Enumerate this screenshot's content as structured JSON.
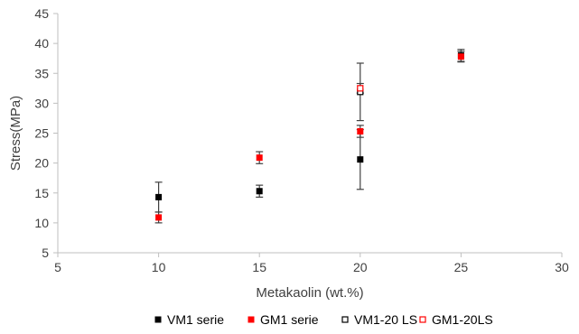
{
  "chart_data": {
    "type": "scatter",
    "xlabel": "Metakaolin (wt.%)",
    "ylabel": "Stress(MPa)",
    "xlim": [
      5,
      30
    ],
    "ylim": [
      5,
      45
    ],
    "xticks": [
      5,
      10,
      15,
      20,
      25,
      30
    ],
    "yticks": [
      5,
      10,
      15,
      20,
      25,
      30,
      35,
      40,
      45
    ],
    "grid": false,
    "legend_position": "bottom",
    "series": [
      {
        "name": "VM1 serie",
        "marker": "filled-square",
        "color": "#000000",
        "points": [
          {
            "x": 10,
            "y": 14.3,
            "err": 2.5
          },
          {
            "x": 15,
            "y": 15.3,
            "err": 1.0
          },
          {
            "x": 20,
            "y": 20.6,
            "err": 5.0
          },
          {
            "x": 25,
            "y": 38.0,
            "err": 1.0
          }
        ]
      },
      {
        "name": "GM1 serie",
        "marker": "filled-square",
        "color": "#ff0000",
        "points": [
          {
            "x": 10,
            "y": 10.9,
            "err": 0.9
          },
          {
            "x": 15,
            "y": 20.9,
            "err": 1.0
          },
          {
            "x": 20,
            "y": 25.3,
            "err": 1.0
          },
          {
            "x": 25,
            "y": 37.8,
            "err": 0.9
          }
        ]
      },
      {
        "name": "VM1-20 LS",
        "marker": "open-square",
        "color": "#000000",
        "points": [
          {
            "x": 20,
            "y": 31.9,
            "err": 4.8
          }
        ]
      },
      {
        "name": "GM1-20LS",
        "marker": "open-square",
        "color": "#ff0000",
        "points": [
          {
            "x": 20,
            "y": 32.5,
            "err": 0.8
          }
        ]
      }
    ]
  }
}
